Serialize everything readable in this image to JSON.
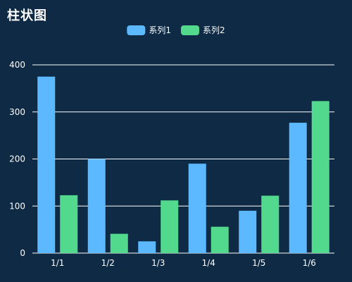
{
  "chart_data": {
    "type": "bar",
    "title": "柱状图",
    "categories": [
      "1/1",
      "1/2",
      "1/3",
      "1/4",
      "1/5",
      "1/6"
    ],
    "series": [
      {
        "name": "系列1",
        "color": "#5cb8ff",
        "values": [
          375,
          200,
          25,
          190,
          90,
          277
        ]
      },
      {
        "name": "系列2",
        "color": "#53d98e",
        "values": [
          123,
          41,
          112,
          56,
          122,
          323
        ]
      }
    ],
    "xlabel": "",
    "ylabel": "",
    "ylim": [
      0,
      400
    ],
    "yticks": [
      0,
      100,
      200,
      300,
      400
    ],
    "grid": true,
    "legend": "top-center",
    "colors": {
      "background": "#0e2a45",
      "grid": "#ffffff",
      "text": "#ffffff"
    }
  }
}
